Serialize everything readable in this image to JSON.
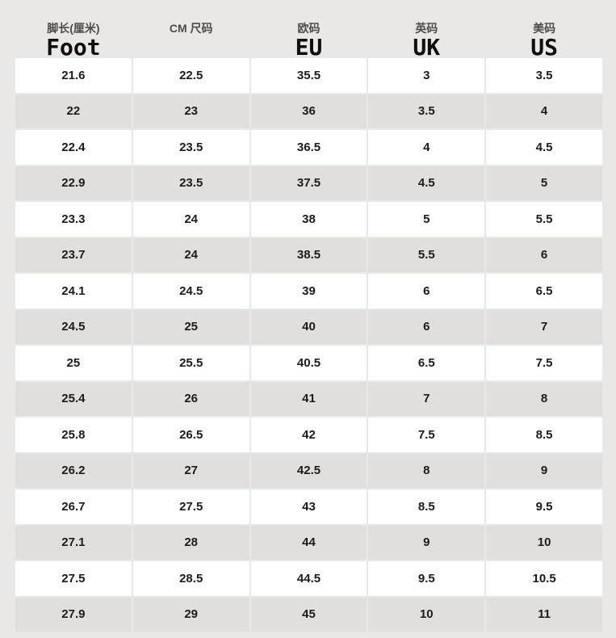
{
  "chart_data": {
    "type": "table",
    "columns": [
      {
        "cn": "脚长(厘米)",
        "en": "Foot"
      },
      {
        "cn": "CM 尺码",
        "en": ""
      },
      {
        "cn": "欧码",
        "en": "EU"
      },
      {
        "cn": "英码",
        "en": "UK"
      },
      {
        "cn": "美码",
        "en": "US"
      }
    ],
    "rows": [
      [
        "21.6",
        "22.5",
        "35.5",
        "3",
        "3.5"
      ],
      [
        "22",
        "23",
        "36",
        "3.5",
        "4"
      ],
      [
        "22.4",
        "23.5",
        "36.5",
        "4",
        "4.5"
      ],
      [
        "22.9",
        "23.5",
        "37.5",
        "4.5",
        "5"
      ],
      [
        "23.3",
        "24",
        "38",
        "5",
        "5.5"
      ],
      [
        "23.7",
        "24",
        "38.5",
        "5.5",
        "6"
      ],
      [
        "24.1",
        "24.5",
        "39",
        "6",
        "6.5"
      ],
      [
        "24.5",
        "25",
        "40",
        "6",
        "7"
      ],
      [
        "25",
        "25.5",
        "40.5",
        "6.5",
        "7.5"
      ],
      [
        "25.4",
        "26",
        "41",
        "7",
        "8"
      ],
      [
        "25.8",
        "26.5",
        "42",
        "7.5",
        "8.5"
      ],
      [
        "26.2",
        "27",
        "42.5",
        "8",
        "9"
      ],
      [
        "26.7",
        "27.5",
        "43",
        "8.5",
        "9.5"
      ],
      [
        "27.1",
        "28",
        "44",
        "9",
        "10"
      ],
      [
        "27.5",
        "28.5",
        "44.5",
        "9.5",
        "10.5"
      ],
      [
        "27.9",
        "29",
        "45",
        "10",
        "11"
      ]
    ],
    "layout": {
      "row_striping": "white-gray-alternating",
      "first_row_background": "white"
    }
  },
  "colors": {
    "page_background": "#e9e8e6",
    "row_white": "#ffffff",
    "row_gray": "#e0dfdd",
    "header_cn_text": "#4d4c49",
    "header_en_text": "#0f0f0f",
    "cell_text": "#1b1b1b"
  }
}
